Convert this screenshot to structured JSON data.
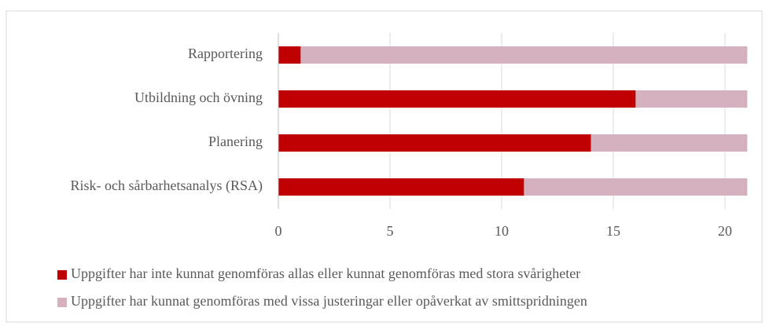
{
  "chart_data": {
    "type": "stacked-barh",
    "categories": [
      "Rapportering",
      "Utbildning och övning",
      "Planering",
      "Risk- och sårbarhetsanalys (RSA)"
    ],
    "series": [
      {
        "name": "Uppgifter har inte kunnat genomföras allas eller kunnat genomföras med stora svårigheter",
        "color": "#c00000",
        "values": [
          1,
          16,
          14,
          11
        ]
      },
      {
        "name": "Uppgifter har kunnat genomföras med vissa justeringar eller opåverkat av smittspridningen",
        "color": "#d5b1c0",
        "values": [
          20,
          5,
          7,
          10
        ]
      }
    ],
    "xlim": [
      0,
      21
    ],
    "xticks": [
      0,
      5,
      10,
      15,
      20
    ],
    "grid": true
  }
}
